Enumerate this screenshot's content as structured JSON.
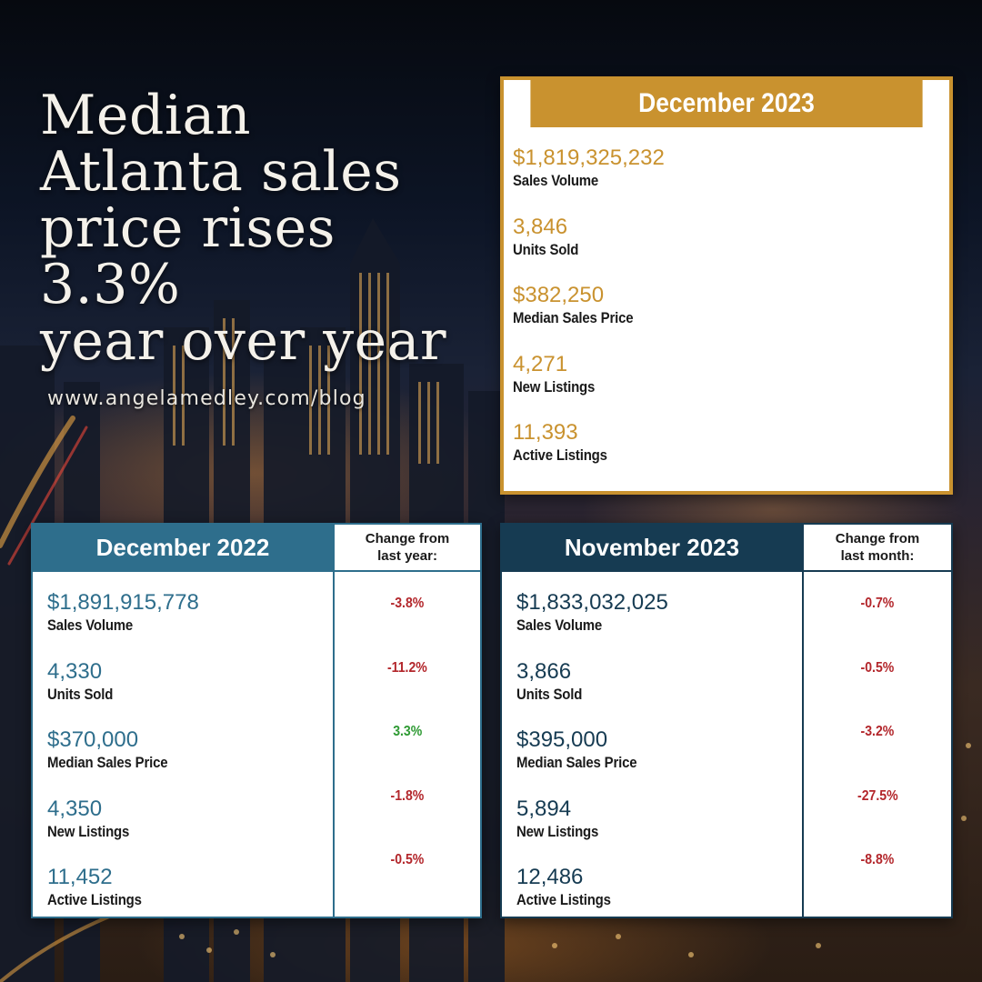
{
  "headline": {
    "lines": [
      "Median",
      "Atlanta sales",
      "price rises 3.3%",
      "year over year"
    ],
    "website": "www.angelamedley.com/blog"
  },
  "colors": {
    "gold": "#c9922f",
    "teal": "#2e6e8c",
    "navy": "#163b52",
    "negative": "#b3262b",
    "positive": "#2e9a33"
  },
  "dec2023": {
    "title": "December 2023",
    "stats": [
      {
        "value": "$1,819,325,232",
        "label": "Sales Volume"
      },
      {
        "value": "3,846",
        "label": "Units Sold"
      },
      {
        "value": "$382,250",
        "label": "Median Sales Price"
      },
      {
        "value": "4,271",
        "label": "New Listings"
      },
      {
        "value": "11,393",
        "label": "Active Listings"
      }
    ]
  },
  "dec2022": {
    "title": "December 2022",
    "change_header": [
      "Change from",
      "last year:"
    ],
    "stats": [
      {
        "value": "$1,891,915,778",
        "label": "Sales Volume",
        "change": "-3.8%"
      },
      {
        "value": "4,330",
        "label": "Units Sold",
        "change": "-11.2%"
      },
      {
        "value": "$370,000",
        "label": "Median Sales Price",
        "change": "3.3%"
      },
      {
        "value": "4,350",
        "label": "New Listings",
        "change": "-1.8%"
      },
      {
        "value": "11,452",
        "label": "Active Listings",
        "change": "-0.5%"
      }
    ]
  },
  "nov2023": {
    "title": "November 2023",
    "change_header": [
      "Change from",
      "last month:"
    ],
    "stats": [
      {
        "value": "$1,833,032,025",
        "label": "Sales Volume",
        "change": "-0.7%"
      },
      {
        "value": "3,866",
        "label": "Units Sold",
        "change": "-0.5%"
      },
      {
        "value": "$395,000",
        "label": "Median Sales Price",
        "change": "-3.2%"
      },
      {
        "value": "5,894",
        "label": "New Listings",
        "change": "-27.5%"
      },
      {
        "value": "12,486",
        "label": "Active Listings",
        "change": "-8.8%"
      }
    ]
  }
}
